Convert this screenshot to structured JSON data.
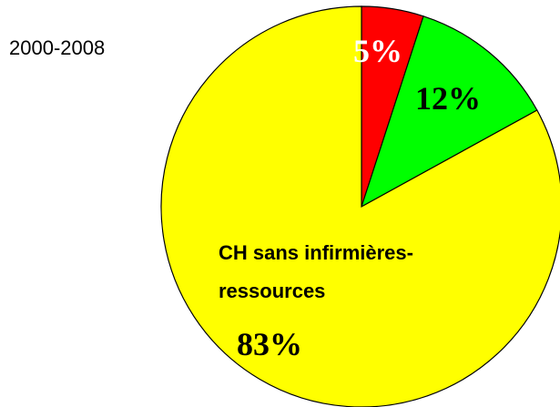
{
  "chart_data": {
    "type": "pie",
    "title": "2000-2008",
    "categories": [
      null,
      null,
      "CH sans infirmières-ressources"
    ],
    "values": [
      5,
      12,
      83
    ],
    "value_labels": [
      "5%",
      "12%",
      "83%"
    ],
    "colors": [
      "#ff0000",
      "#00ff00",
      "#ffff00"
    ],
    "value_label_colors": [
      "#ffffff",
      "#000000",
      "#000000"
    ]
  }
}
